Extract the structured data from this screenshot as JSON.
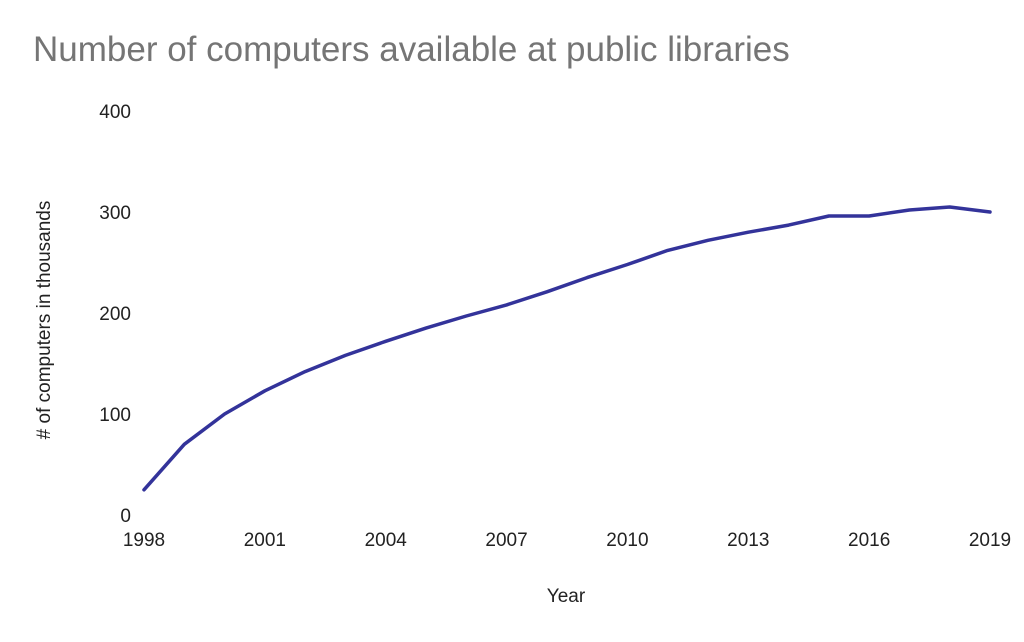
{
  "chart_data": {
    "type": "line",
    "title": "Number of computers available at public libraries",
    "xlabel": "Year",
    "ylabel": "# of computers in thousands",
    "xlim": [
      1998,
      2019
    ],
    "ylim": [
      0,
      400
    ],
    "x_ticks": [
      1998,
      2001,
      2004,
      2007,
      2010,
      2013,
      2016,
      2019
    ],
    "y_ticks": [
      0,
      100,
      200,
      300,
      400
    ],
    "grid": false,
    "legend": "none",
    "line_color": "#33339a",
    "series": [
      {
        "x": [
          1998,
          1999,
          2000,
          2001,
          2002,
          2003,
          2004,
          2005,
          2006,
          2007,
          2008,
          2009,
          2010,
          2011,
          2012,
          2013,
          2014,
          2015,
          2016,
          2017,
          2018,
          2019
        ],
        "values": [
          25,
          70,
          100,
          123,
          142,
          158,
          172,
          185,
          197,
          208,
          221,
          235,
          248,
          262,
          272,
          280,
          287,
          296,
          296,
          302,
          305,
          300
        ]
      }
    ]
  }
}
